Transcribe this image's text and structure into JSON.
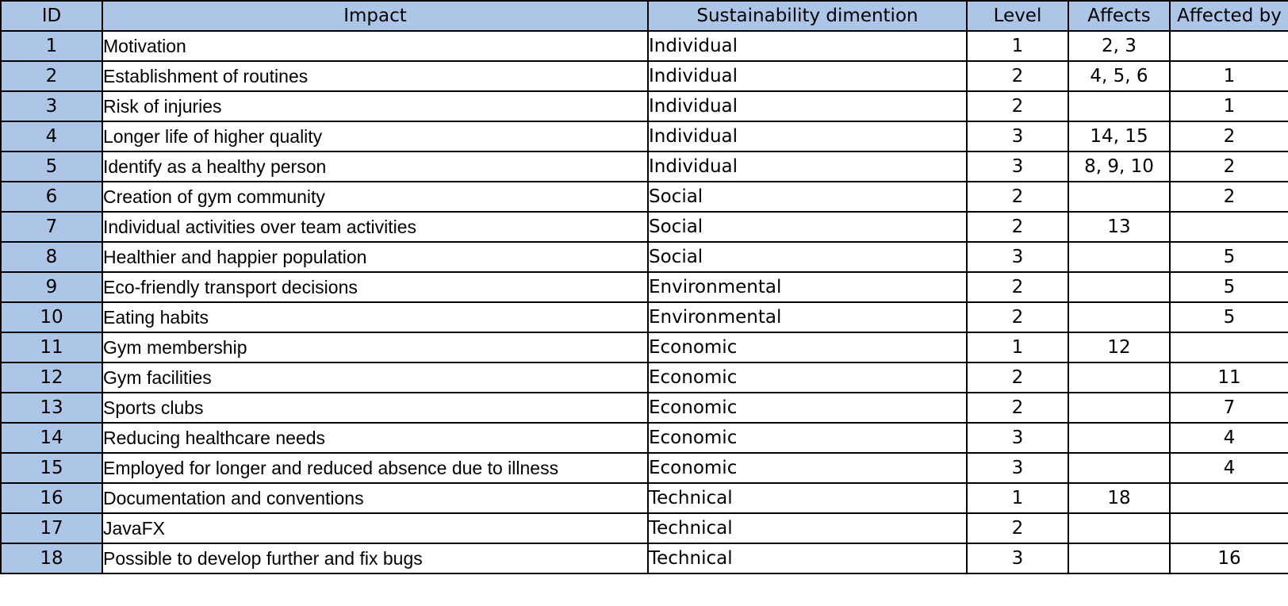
{
  "headers": {
    "id": "ID",
    "impact": "Impact",
    "dimension": "Sustainability dimention",
    "level": "Level",
    "affects": "Affects",
    "affected_by": "Affected by"
  },
  "rows": [
    {
      "id": "1",
      "impact": "Motivation",
      "dimension": "Individual",
      "level": "1",
      "affects": "2, 3",
      "affected_by": ""
    },
    {
      "id": "2",
      "impact": "Establishment of routines",
      "dimension": "Individual",
      "level": "2",
      "affects": "4, 5, 6",
      "affected_by": "1"
    },
    {
      "id": "3",
      "impact": "Risk of injuries",
      "dimension": "Individual",
      "level": "2",
      "affects": "",
      "affected_by": "1"
    },
    {
      "id": "4",
      "impact": "Longer life of higher quality",
      "dimension": "Individual",
      "level": "3",
      "affects": "14, 15",
      "affected_by": "2"
    },
    {
      "id": "5",
      "impact": "Identify as a healthy person",
      "dimension": "Individual",
      "level": "3",
      "affects": "8, 9, 10",
      "affected_by": "2"
    },
    {
      "id": "6",
      "impact": "Creation of gym community",
      "dimension": "Social",
      "level": "2",
      "affects": "",
      "affected_by": "2"
    },
    {
      "id": "7",
      "impact": "Individual activities over team activities",
      "dimension": "Social",
      "level": "2",
      "affects": "13",
      "affected_by": ""
    },
    {
      "id": "8",
      "impact": "Healthier and happier population",
      "dimension": "Social",
      "level": "3",
      "affects": "",
      "affected_by": "5"
    },
    {
      "id": "9",
      "impact": "Eco-friendly transport decisions",
      "dimension": "Environmental",
      "level": "2",
      "affects": "",
      "affected_by": "5"
    },
    {
      "id": "10",
      "impact": "Eating habits",
      "dimension": "Environmental",
      "level": "2",
      "affects": "",
      "affected_by": "5"
    },
    {
      "id": "11",
      "impact": "Gym membership",
      "dimension": "Economic",
      "level": "1",
      "affects": "12",
      "affected_by": ""
    },
    {
      "id": "12",
      "impact": "Gym facilities",
      "dimension": "Economic",
      "level": "2",
      "affects": "",
      "affected_by": "11"
    },
    {
      "id": "13",
      "impact": "Sports clubs",
      "dimension": "Economic",
      "level": "2",
      "affects": "",
      "affected_by": "7"
    },
    {
      "id": "14",
      "impact": "Reducing healthcare needs",
      "dimension": "Economic",
      "level": "3",
      "affects": "",
      "affected_by": "4"
    },
    {
      "id": "15",
      "impact": "Employed for longer and reduced absence due to illness",
      "dimension": "Economic",
      "level": "3",
      "affects": "",
      "affected_by": "4"
    },
    {
      "id": "16",
      "impact": "Documentation and conventions",
      "dimension": "Technical",
      "level": "1",
      "affects": "18",
      "affected_by": ""
    },
    {
      "id": "17",
      "impact": "JavaFX",
      "dimension": "Technical",
      "level": "2",
      "affects": "",
      "affected_by": ""
    },
    {
      "id": "18",
      "impact": "Possible to develop further and fix bugs",
      "dimension": "Technical",
      "level": "3",
      "affects": "",
      "affected_by": "16"
    }
  ]
}
